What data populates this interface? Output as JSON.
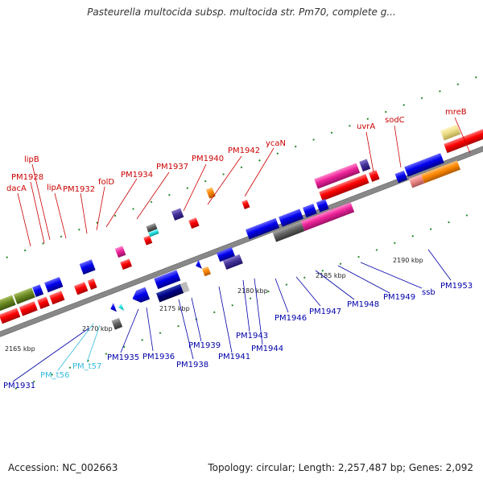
{
  "title": "Pasteurella multocida subsp. multocida str. Pm70, complete g...",
  "footer": {
    "accession": "Accession: NC_002663",
    "summary": "Topology: circular; Length: 2,257,487 bp; Genes: 2,092"
  },
  "ticks": [
    "2165 kbp",
    "2170 kbp",
    "2175 kbp",
    "2180 kbp",
    "2185 kbp",
    "2190 kbp"
  ],
  "labels_top": [
    "dacA",
    "PM1928",
    "lipB",
    "lipA",
    "PM1932",
    "folD",
    "PM1934",
    "PM1937",
    "PM1940",
    "PM1942",
    "ycaN",
    "uvrA",
    "sodC",
    "mreB"
  ],
  "labels_bottom": [
    "PM1931",
    "PM_t56",
    "PM_t57",
    "PM1935",
    "PM1936",
    "PM1938",
    "PM1939",
    "PM1941",
    "PM1943",
    "PM1944",
    "PM1946",
    "PM1947",
    "PM1948",
    "PM1949",
    "ssb",
    "PM1953"
  ],
  "colors": {
    "top_label": "#cc0000",
    "bottom_label": "#0000aa",
    "trna_label": "#33bbdd",
    "axis": "#888888",
    "cds": "#ff0000",
    "gene_blue": "#0000ee"
  }
}
